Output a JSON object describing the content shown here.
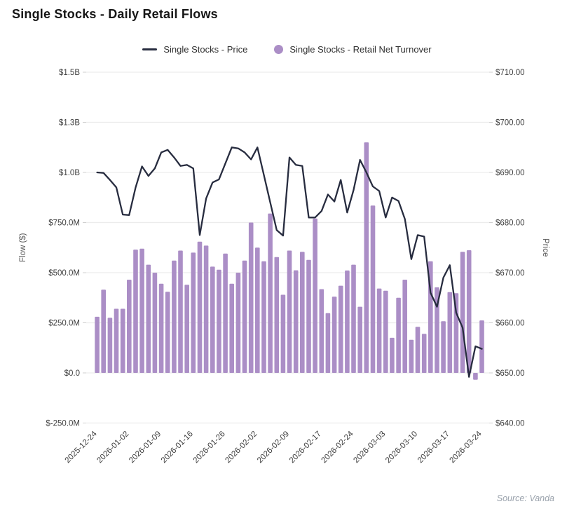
{
  "title": "Single Stocks -  Daily Retail Flows",
  "source": "Source: Vanda",
  "legend": {
    "price_label": "Single Stocks - Price",
    "turnover_label": "Single Stocks - Retail Net Turnover"
  },
  "colors": {
    "bar": "#ab8ec6",
    "line": "#272c3f",
    "grid": "#ececec",
    "tick_dash": "#cfcfcf",
    "axis_text": "#3d3d3d",
    "axis_title": "#555555",
    "title_text": "#161616",
    "source_text": "#9aa2ac"
  },
  "chart_data": {
    "type": "bar+line",
    "title": "Single Stocks -  Daily Retail Flows",
    "left_axis": {
      "label": "Flow ($)",
      "tick_labels": [
        "$1.5B",
        "$1.3B",
        "$1.0B",
        "$750.0M",
        "$500.0M",
        "$250.0M",
        "$0.0",
        "$-250.0M"
      ],
      "tick_values_musd": [
        1500,
        1250,
        1000,
        750,
        500,
        250,
        0,
        -250
      ],
      "range_musd": [
        -250,
        1500
      ],
      "grid": true
    },
    "right_axis": {
      "label": "Price",
      "tick_labels": [
        "$710.00",
        "$700.00",
        "$690.00",
        "$680.00",
        "$670.00",
        "$660.00",
        "$650.00",
        "$640.00"
      ],
      "tick_values": [
        710,
        700,
        690,
        680,
        670,
        660,
        650,
        640
      ],
      "range": [
        640,
        710
      ]
    },
    "x_tick_labels": [
      "2025-12-24",
      "2026-01-02",
      "2026-01-09",
      "2026-01-16",
      "2026-01-26",
      "2026-02-02",
      "2026-02-09",
      "2026-02-17",
      "2026-02-24",
      "2026-03-03",
      "2026-03-10",
      "2026-03-17",
      "2026-03-24"
    ],
    "x_tick_every": 5,
    "dates": [
      "2025-12-24",
      "2025-12-26",
      "2025-12-29",
      "2025-12-30",
      "2025-12-31",
      "2026-01-02",
      "2026-01-05",
      "2026-01-06",
      "2026-01-07",
      "2026-01-08",
      "2026-01-09",
      "2026-01-12",
      "2026-01-13",
      "2026-01-14",
      "2026-01-15",
      "2026-01-16",
      "2026-01-20",
      "2026-01-21",
      "2026-01-22",
      "2026-01-23",
      "2026-01-26",
      "2026-01-27",
      "2026-01-28",
      "2026-01-29",
      "2026-01-30",
      "2026-02-02",
      "2026-02-03",
      "2026-02-04",
      "2026-02-05",
      "2026-02-06",
      "2026-02-09",
      "2026-02-10",
      "2026-02-11",
      "2026-02-12",
      "2026-02-13",
      "2026-02-17",
      "2026-02-18",
      "2026-02-19",
      "2026-02-20",
      "2026-02-23",
      "2026-02-24",
      "2026-02-25",
      "2026-02-26",
      "2026-02-27",
      "2026-03-02",
      "2026-03-03",
      "2026-03-04",
      "2026-03-05",
      "2026-03-06",
      "2026-03-09",
      "2026-03-10",
      "2026-03-11",
      "2026-03-12",
      "2026-03-13",
      "2026-03-16",
      "2026-03-17",
      "2026-03-18",
      "2026-03-19",
      "2026-03-20",
      "2026-03-23",
      "2026-03-24"
    ],
    "series": [
      {
        "name": "Single Stocks - Retail Net Turnover",
        "type": "bar",
        "axis": "left",
        "unit": "M USD",
        "values": [
          280,
          415,
          275,
          320,
          320,
          465,
          615,
          620,
          540,
          500,
          445,
          405,
          560,
          610,
          440,
          600,
          655,
          635,
          530,
          515,
          595,
          445,
          500,
          560,
          750,
          625,
          557,
          795,
          578,
          390,
          610,
          512,
          604,
          564,
          770,
          418,
          298,
          380,
          435,
          511,
          540,
          330,
          1150,
          835,
          421,
          410,
          175,
          375,
          465,
          165,
          230,
          195,
          557,
          427,
          258,
          403,
          398,
          604,
          612,
          -34,
          262
        ]
      },
      {
        "name": "Single Stocks - Price",
        "type": "line",
        "axis": "right",
        "unit": "USD",
        "values": [
          690.0,
          689.9,
          688.5,
          687.0,
          681.6,
          681.5,
          687.0,
          691.2,
          689.3,
          690.8,
          694.0,
          694.5,
          693.0,
          691.3,
          691.5,
          690.8,
          677.5,
          684.8,
          688.0,
          688.6,
          691.8,
          695.0,
          694.8,
          694.0,
          692.6,
          695.0,
          689.5,
          684.0,
          678.5,
          677.4,
          693.0,
          691.5,
          691.3,
          681.0,
          681.0,
          682.3,
          685.6,
          684.2,
          688.5,
          682.0,
          686.5,
          692.5,
          690.0,
          687.2,
          686.3,
          681.0,
          685.0,
          684.3,
          680.7,
          672.7,
          677.5,
          677.2,
          666.0,
          663.2,
          669.0,
          671.5,
          662.0,
          659.0,
          649.2,
          655.3,
          654.8
        ]
      }
    ]
  }
}
